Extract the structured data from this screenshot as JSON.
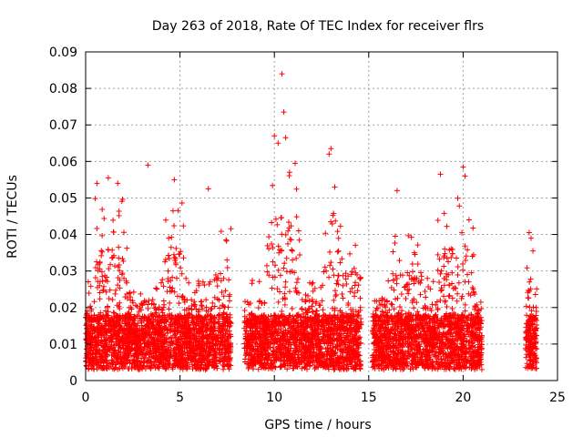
{
  "chart_data": {
    "type": "scatter",
    "title": "Day 263 of 2018, Rate Of TEC Index for receiver flrs",
    "xlabel": "GPS time / hours",
    "ylabel": "ROTI / TECUs",
    "xlim": [
      0,
      25
    ],
    "ylim": [
      0,
      0.09
    ],
    "x_ticks": [
      0,
      5,
      10,
      15,
      20,
      25
    ],
    "x_tick_labels": [
      "0",
      "5",
      "10",
      "15",
      "20",
      "25"
    ],
    "y_ticks": [
      0,
      0.01,
      0.02,
      0.03,
      0.04,
      0.05,
      0.06,
      0.07,
      0.08,
      0.09
    ],
    "y_tick_labels": [
      "0",
      "0.01",
      "0.02",
      "0.03",
      "0.04",
      "0.05",
      "0.06",
      "0.07",
      "0.08",
      "0.09"
    ],
    "grid": true,
    "marker": "+",
    "marker_color": "#ff0000",
    "coverage_intervals_hours": [
      [
        0,
        7.7
      ],
      [
        8.4,
        14.6
      ],
      [
        15.2,
        21.0
      ],
      [
        23.3,
        23.9
      ]
    ],
    "notable_points": [
      {
        "x": 10.4,
        "y": 0.084
      },
      {
        "x": 10.5,
        "y": 0.0735
      },
      {
        "x": 10.0,
        "y": 0.067
      },
      {
        "x": 10.6,
        "y": 0.0665
      },
      {
        "x": 10.2,
        "y": 0.065
      },
      {
        "x": 13.0,
        "y": 0.0635
      },
      {
        "x": 12.9,
        "y": 0.062
      },
      {
        "x": 11.1,
        "y": 0.0595
      },
      {
        "x": 20.0,
        "y": 0.0585
      },
      {
        "x": 3.3,
        "y": 0.059
      },
      {
        "x": 18.8,
        "y": 0.0565
      },
      {
        "x": 20.1,
        "y": 0.056
      },
      {
        "x": 1.2,
        "y": 0.0555
      },
      {
        "x": 4.7,
        "y": 0.055
      },
      {
        "x": 1.7,
        "y": 0.054
      },
      {
        "x": 0.6,
        "y": 0.054
      },
      {
        "x": 6.5,
        "y": 0.0525
      },
      {
        "x": 13.2,
        "y": 0.053
      },
      {
        "x": 16.5,
        "y": 0.052
      },
      {
        "x": 23.5,
        "y": 0.0405
      },
      {
        "x": 23.6,
        "y": 0.039
      },
      {
        "x": 23.7,
        "y": 0.0355
      }
    ]
  }
}
